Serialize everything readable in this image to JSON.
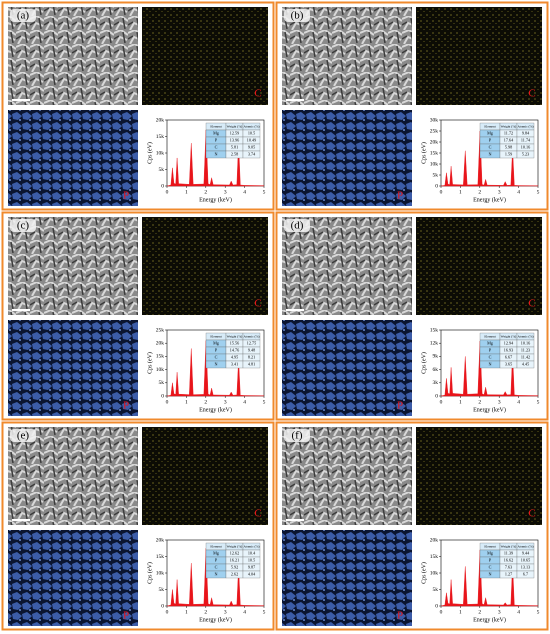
{
  "panels": [
    {
      "label": "(a)",
      "c_label": "C",
      "p_label": "P",
      "spectrum": {
        "type": "area",
        "xlabel": "Energy (keV)",
        "ylabel": "Cps (eV)",
        "color": "#e8141a",
        "xlim": [
          0,
          5
        ],
        "xticks": [
          0,
          1,
          2,
          3,
          4,
          5
        ],
        "ylim": [
          0,
          20000
        ],
        "yticks": [
          0,
          {
            "value": 5000,
            "label": "5k"
          },
          {
            "value": 10000,
            "label": "10k"
          },
          {
            "value": 15000,
            "label": "15k"
          },
          {
            "value": 20000,
            "label": "20k"
          }
        ],
        "x": [
          0,
          0.2,
          0.28,
          0.36,
          0.45,
          0.52,
          0.6,
          1.15,
          1.25,
          1.35,
          1.9,
          2.01,
          2.12,
          2.22,
          2.3,
          2.38,
          3.22,
          3.31,
          3.4,
          3.6,
          3.69,
          3.78,
          4.0,
          5
        ],
        "values": [
          0,
          300,
          5500,
          800,
          600,
          8500,
          700,
          500,
          13000,
          500,
          600,
          17000,
          700,
          400,
          2500,
          400,
          300,
          1500,
          300,
          400,
          13500,
          300,
          200,
          100
        ]
      },
      "table": {
        "header": [
          "Element",
          "Weight (%)",
          "Atomic (%)"
        ],
        "rows": [
          [
            "Mg",
            "12.59",
            "10.5"
          ],
          [
            "P",
            "13.96",
            "10.49"
          ],
          [
            "C",
            "5.81",
            "9.05"
          ],
          [
            "N",
            "2.58",
            "3.74"
          ]
        ]
      }
    },
    {
      "label": "(b)",
      "c_label": "C",
      "p_label": "P",
      "spectrum": {
        "type": "area",
        "xlabel": "Energy (keV)",
        "ylabel": "Cps (eV)",
        "color": "#e8141a",
        "xlim": [
          0,
          5
        ],
        "xticks": [
          0,
          1,
          2,
          3,
          4,
          5
        ],
        "ylim": [
          0,
          30000
        ],
        "yticks": [
          0,
          {
            "value": 5000,
            "label": "5k"
          },
          {
            "value": 10000,
            "label": "10k"
          },
          {
            "value": 15000,
            "label": "15k"
          },
          {
            "value": 20000,
            "label": "20k"
          },
          {
            "value": 25000,
            "label": "25k"
          },
          {
            "value": 30000,
            "label": "30k"
          }
        ],
        "x": [
          0,
          0.2,
          0.28,
          0.36,
          0.45,
          0.52,
          0.6,
          1.15,
          1.25,
          1.35,
          1.9,
          2.01,
          2.12,
          2.22,
          2.3,
          2.38,
          3.22,
          3.31,
          3.4,
          3.6,
          3.69,
          3.78,
          4.0,
          5
        ],
        "values": [
          0,
          300,
          6000,
          800,
          600,
          9000,
          700,
          500,
          16000,
          500,
          600,
          25000,
          700,
          400,
          3000,
          400,
          300,
          2000,
          300,
          400,
          17000,
          300,
          200,
          100
        ]
      },
      "table": {
        "header": [
          "Element",
          "Weight (%)",
          "Atomic (%)"
        ],
        "rows": [
          [
            "Mg",
            "11.72",
            "9.84"
          ],
          [
            "P",
            "17.64",
            "11.74"
          ],
          [
            "C",
            "5.98",
            "10.16"
          ],
          [
            "N",
            "1.59",
            "5.23"
          ]
        ]
      }
    },
    {
      "label": "(c)",
      "c_label": "C",
      "p_label": "P",
      "spectrum": {
        "type": "area",
        "xlabel": "Energy (keV)",
        "ylabel": "Cps (eV)",
        "color": "#e8141a",
        "xlim": [
          0,
          5
        ],
        "xticks": [
          0,
          1,
          2,
          3,
          4,
          5
        ],
        "ylim": [
          0,
          25000
        ],
        "yticks": [
          0,
          {
            "value": 5000,
            "label": "5k"
          },
          {
            "value": 10000,
            "label": "10k"
          },
          {
            "value": 15000,
            "label": "15k"
          },
          {
            "value": 20000,
            "label": "20k"
          },
          {
            "value": 25000,
            "label": "25k"
          }
        ],
        "x": [
          0,
          0.2,
          0.28,
          0.36,
          0.45,
          0.52,
          0.6,
          1.15,
          1.25,
          1.35,
          1.9,
          2.01,
          2.12,
          2.22,
          2.3,
          2.38,
          3.22,
          3.31,
          3.4,
          3.6,
          3.69,
          3.78,
          4.0,
          5
        ],
        "values": [
          0,
          300,
          5000,
          800,
          600,
          9000,
          700,
          500,
          18000,
          500,
          600,
          21000,
          700,
          400,
          3000,
          400,
          300,
          1500,
          300,
          400,
          14000,
          300,
          200,
          100
        ]
      },
      "table": {
        "header": [
          "Element",
          "Weight (%)",
          "Atomic (%)"
        ],
        "rows": [
          [
            "Mg",
            "15.56",
            "12.75"
          ],
          [
            "P",
            "14.76",
            "9.48"
          ],
          [
            "C",
            "4.95",
            "8.21"
          ],
          [
            "N",
            "3.41",
            "4.81"
          ]
        ]
      }
    },
    {
      "label": "(d)",
      "c_label": "C",
      "p_label": "P",
      "spectrum": {
        "type": "area",
        "xlabel": "Energy (keV)",
        "ylabel": "Cps (eV)",
        "color": "#e8141a",
        "xlim": [
          0,
          5
        ],
        "xticks": [
          0,
          1,
          2,
          3,
          4,
          5
        ],
        "ylim": [
          0,
          15000
        ],
        "yticks": [
          0,
          {
            "value": 3000,
            "label": "3k"
          },
          {
            "value": 6000,
            "label": "6k"
          },
          {
            "value": 9000,
            "label": "9k"
          },
          {
            "value": 12000,
            "label": "12k"
          },
          {
            "value": 15000,
            "label": "15k"
          }
        ],
        "x": [
          0,
          0.2,
          0.28,
          0.36,
          0.45,
          0.52,
          0.6,
          1.15,
          1.25,
          1.35,
          1.9,
          2.01,
          2.12,
          2.22,
          2.3,
          2.38,
          3.22,
          3.31,
          3.4,
          3.6,
          3.69,
          3.78,
          4.0,
          5
        ],
        "values": [
          0,
          200,
          4000,
          600,
          500,
          6500,
          600,
          400,
          9000,
          400,
          500,
          12500,
          500,
          300,
          2000,
          300,
          250,
          1000,
          250,
          300,
          10000,
          250,
          150,
          80
        ]
      },
      "table": {
        "header": [
          "Element",
          "Weight (%)",
          "Atomic (%)"
        ],
        "rows": [
          [
            "Mg",
            "12.94",
            "10.16"
          ],
          [
            "P",
            "16.93",
            "11.23"
          ],
          [
            "C",
            "6.67",
            "11.42"
          ],
          [
            "N",
            "3.65",
            "4.45"
          ]
        ]
      }
    },
    {
      "label": "(e)",
      "c_label": "C",
      "p_label": "P",
      "spectrum": {
        "type": "area",
        "xlabel": "Energy (keV)",
        "ylabel": "Cps (eV)",
        "color": "#e8141a",
        "xlim": [
          0,
          5
        ],
        "xticks": [
          0,
          1,
          2,
          3,
          4,
          5
        ],
        "ylim": [
          0,
          20000
        ],
        "yticks": [
          0,
          {
            "value": 5000,
            "label": "5k"
          },
          {
            "value": 10000,
            "label": "10k"
          },
          {
            "value": 15000,
            "label": "15k"
          },
          {
            "value": 20000,
            "label": "20k"
          }
        ],
        "x": [
          0,
          0.2,
          0.28,
          0.36,
          0.45,
          0.52,
          0.6,
          1.15,
          1.25,
          1.35,
          1.9,
          2.01,
          2.12,
          2.22,
          2.3,
          2.38,
          3.22,
          3.31,
          3.4,
          3.6,
          3.69,
          3.78,
          4.0,
          5
        ],
        "values": [
          0,
          300,
          5000,
          800,
          600,
          8000,
          700,
          500,
          13000,
          500,
          600,
          17500,
          700,
          400,
          2500,
          400,
          300,
          1500,
          300,
          400,
          12000,
          300,
          200,
          100
        ]
      },
      "table": {
        "header": [
          "Element",
          "Weight (%)",
          "Atomic (%)"
        ],
        "rows": [
          [
            "Mg",
            "12.62",
            "10.4"
          ],
          [
            "P",
            "16.21",
            "10.5"
          ],
          [
            "C",
            "5.92",
            "9.87"
          ],
          [
            "N",
            "2.62",
            "4.04"
          ]
        ]
      }
    },
    {
      "label": "(f)",
      "c_label": "C",
      "p_label": "P",
      "spectrum": {
        "type": "area",
        "xlabel": "Energy (keV)",
        "ylabel": "Cps (eV)",
        "color": "#e8141a",
        "xlim": [
          0,
          5
        ],
        "xticks": [
          0,
          1,
          2,
          3,
          4,
          5
        ],
        "ylim": [
          0,
          20000
        ],
        "yticks": [
          0,
          {
            "value": 5000,
            "label": "5k"
          },
          {
            "value": 10000,
            "label": "10k"
          },
          {
            "value": 15000,
            "label": "15k"
          },
          {
            "value": 20000,
            "label": "20k"
          }
        ],
        "x": [
          0,
          0.2,
          0.28,
          0.36,
          0.45,
          0.52,
          0.6,
          1.15,
          1.25,
          1.35,
          1.9,
          2.01,
          2.12,
          2.22,
          2.3,
          2.38,
          3.22,
          3.31,
          3.4,
          3.6,
          3.69,
          3.78,
          4.0,
          5
        ],
        "values": [
          0,
          300,
          4000,
          800,
          600,
          8000,
          700,
          500,
          12000,
          500,
          600,
          17000,
          700,
          400,
          2500,
          400,
          300,
          1000,
          300,
          400,
          13000,
          300,
          200,
          100
        ]
      },
      "table": {
        "header": [
          "Element",
          "Weight (%)",
          "Atomic (%)"
        ],
        "rows": [
          [
            "Mg",
            "11.39",
            "9.44"
          ],
          [
            "P",
            "16.62",
            "10.65"
          ],
          [
            "C",
            "7.63",
            "13.13"
          ],
          [
            "N",
            "1.27",
            "6.7"
          ]
        ]
      }
    }
  ]
}
